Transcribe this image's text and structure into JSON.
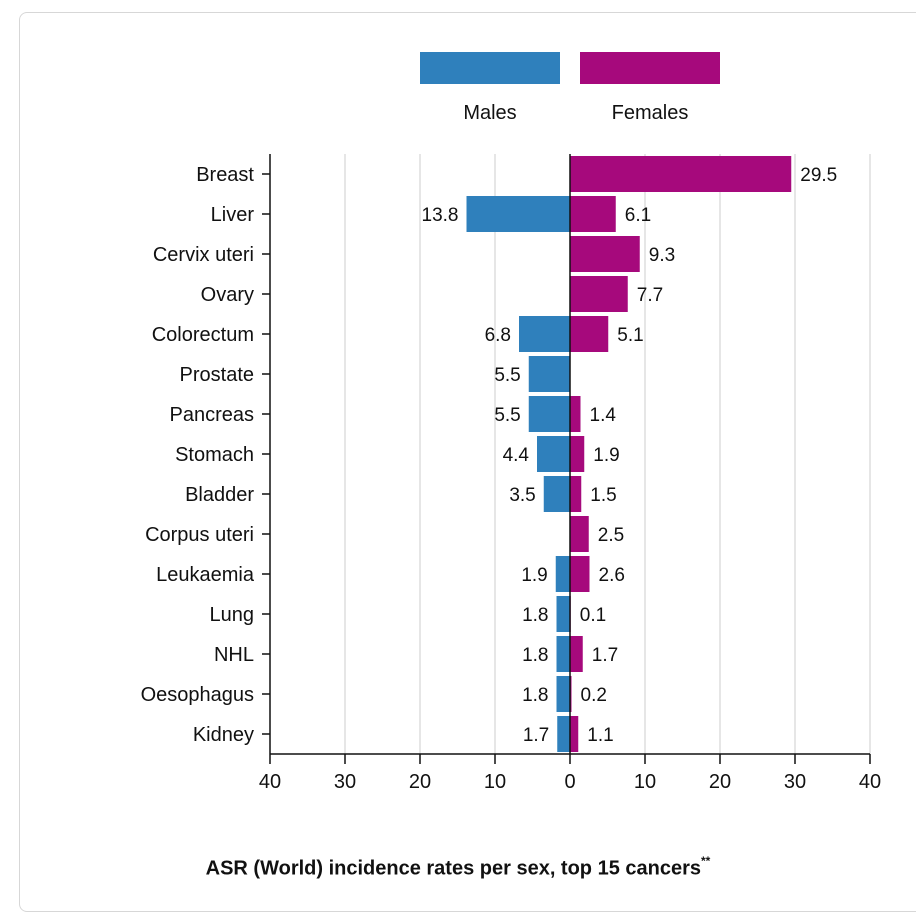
{
  "chart_data": {
    "type": "bar",
    "orientation": "horizontal-diverging",
    "title": "ASR (World) incidence rates per sex, top 15 cancers",
    "title_marker": "**",
    "categories": [
      "Breast",
      "Liver",
      "Cervix uteri",
      "Ovary",
      "Colorectum",
      "Prostate",
      "Pancreas",
      "Stomach",
      "Bladder",
      "Corpus uteri",
      "Leukaemia",
      "Lung",
      "NHL",
      "Oesophagus",
      "Kidney"
    ],
    "series": [
      {
        "name": "Males",
        "color": "#2f80bc",
        "direction": "left",
        "values": [
          null,
          13.8,
          null,
          null,
          6.8,
          5.5,
          5.5,
          4.4,
          3.5,
          null,
          1.9,
          1.8,
          1.8,
          1.8,
          1.7
        ]
      },
      {
        "name": "Females",
        "color": "#a6097c",
        "direction": "right",
        "values": [
          29.5,
          6.1,
          9.3,
          7.7,
          5.1,
          null,
          1.4,
          1.9,
          1.5,
          2.5,
          2.6,
          0.1,
          1.7,
          0.2,
          1.1
        ]
      }
    ],
    "x_ticks": [
      40,
      30,
      20,
      10,
      0,
      10,
      20,
      30,
      40
    ],
    "xlim": [
      -40,
      40
    ],
    "grid": true,
    "legend": "top-center"
  }
}
